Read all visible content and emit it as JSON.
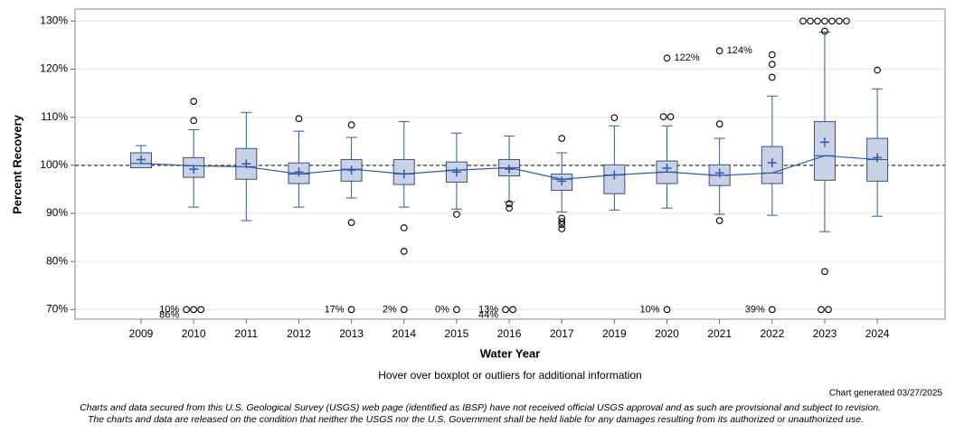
{
  "chart_data": {
    "type": "box",
    "y_label": "Percent Recovery",
    "x_label": "Water Year",
    "hover_note": "Hover over boxplot or outliers for additional information",
    "generated": "Chart generated 03/27/2025",
    "disclaimer": [
      "Charts and data secured from this U.S. Geological Survey (USGS) web page (identified as IBSP) have not received official USGS approval and as such are provisional and subject to revision.",
      "The charts and data are released on the condition that neither the USGS nor the U.S. Government shall be held liable for any damages resulting from its authorized or unauthorized use."
    ],
    "ylim": [
      68,
      132.5
    ],
    "yticks": [
      {
        "value": 70,
        "label": "70%"
      },
      {
        "value": 80,
        "label": "80%"
      },
      {
        "value": 90,
        "label": "90%"
      },
      {
        "value": 100,
        "label": "100%"
      },
      {
        "value": 110,
        "label": "110%"
      },
      {
        "value": 120,
        "label": "120%"
      },
      {
        "value": 130,
        "label": "130%"
      }
    ],
    "reference": 100,
    "grid": true,
    "box_color": "#c9d1e6",
    "line_color": "#2c5aa8",
    "categories": [
      "2009",
      "2010",
      "2011",
      "2012",
      "2013",
      "2014",
      "2015",
      "2016",
      "2017",
      "2019",
      "2020",
      "2021",
      "2022",
      "2023",
      "2024"
    ],
    "boxes": [
      {
        "min": 99.5,
        "q1": 99.5,
        "median": 100.4,
        "q3": 102.6,
        "max": 104.1,
        "mean": 101.2,
        "outliers": []
      },
      {
        "min": 91.3,
        "q1": 97.5,
        "median": 99.9,
        "q3": 101.6,
        "max": 107.4,
        "mean": 99.2,
        "outliers": [
          113.3,
          109.3,
          70,
          70,
          70
        ],
        "notes": [
          "10%",
          "86%"
        ]
      },
      {
        "min": 88.5,
        "q1": 97.1,
        "median": 99.7,
        "q3": 103.5,
        "max": 111.0,
        "mean": 100.3,
        "outliers": []
      },
      {
        "min": 91.3,
        "q1": 96.2,
        "median": 98.2,
        "q3": 100.5,
        "max": 107.1,
        "mean": 98.6,
        "outliers": [
          109.7
        ]
      },
      {
        "min": 93.2,
        "q1": 96.7,
        "median": 99.2,
        "q3": 101.2,
        "max": 105.8,
        "mean": 99.0,
        "outliers": [
          108.4,
          88.1,
          70
        ],
        "notes": [
          "17%"
        ]
      },
      {
        "min": 91.3,
        "q1": 96.0,
        "median": 98.2,
        "q3": 101.2,
        "max": 109.1,
        "mean": 98.2,
        "outliers": [
          87.0,
          82.1,
          70
        ],
        "notes": [
          "2%"
        ]
      },
      {
        "min": 90.9,
        "q1": 96.5,
        "median": 99.0,
        "q3": 100.7,
        "max": 106.7,
        "mean": 98.6,
        "outliers": [
          89.8,
          70
        ],
        "notes": [
          "0%"
        ]
      },
      {
        "min": 92.4,
        "q1": 97.8,
        "median": 99.5,
        "q3": 101.2,
        "max": 106.1,
        "mean": 99.2,
        "outliers": [
          92.0,
          91.1,
          70,
          70
        ],
        "notes": [
          "13%",
          "44%"
        ]
      },
      {
        "min": 90.3,
        "q1": 94.8,
        "median": 97.1,
        "q3": 98.2,
        "max": 102.6,
        "mean": 96.7,
        "outliers": [
          105.6,
          89.0,
          88.3,
          87.7,
          86.8
        ]
      },
      {
        "min": 90.7,
        "q1": 94.1,
        "median": 98.0,
        "q3": 100.1,
        "max": 108.2,
        "mean": 98.0,
        "outliers": [
          109.9
        ]
      },
      {
        "min": 91.1,
        "q1": 96.2,
        "median": 98.6,
        "q3": 100.9,
        "max": 108.2,
        "mean": 99.4,
        "outliers": [
          122.3,
          110.1,
          110.1,
          70
        ],
        "notes": [
          "10%"
        ],
        "top_label": "122%"
      },
      {
        "min": 89.8,
        "q1": 95.8,
        "median": 97.9,
        "q3": 100.1,
        "max": 105.6,
        "mean": 98.4,
        "outliers": [
          123.8,
          108.6,
          88.5
        ],
        "top_label": "124%"
      },
      {
        "min": 89.6,
        "q1": 96.2,
        "median": 98.4,
        "q3": 103.9,
        "max": 114.4,
        "mean": 100.5,
        "outliers": [
          123.0,
          121.0,
          118.3,
          70
        ],
        "notes": [
          "39%"
        ]
      },
      {
        "min": 86.2,
        "q1": 96.9,
        "median": 102.0,
        "q3": 109.1,
        "max": 127.7,
        "mean": 104.8,
        "outliers": [
          130,
          130,
          130,
          130,
          130,
          130,
          130,
          127.9,
          77.9,
          70,
          70
        ]
      },
      {
        "min": 89.4,
        "q1": 96.7,
        "median": 101.2,
        "q3": 105.6,
        "max": 115.9,
        "mean": 101.6,
        "outliers": [
          119.8
        ]
      }
    ]
  }
}
